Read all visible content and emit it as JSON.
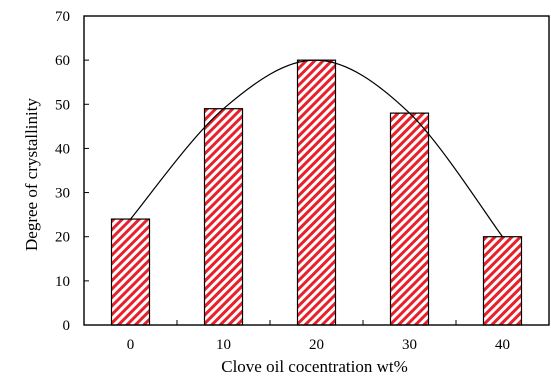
{
  "chart_data": {
    "type": "bar",
    "categories": [
      "0",
      "10",
      "20",
      "30",
      "40"
    ],
    "values": [
      24,
      49,
      60,
      48,
      20
    ],
    "xlabel": "Clove oil cocentration wt%",
    "ylabel": "Degree of crystallinity",
    "ylim": [
      0,
      70
    ],
    "yticks": [
      0,
      10,
      20,
      30,
      40,
      50,
      60,
      70
    ],
    "grid": false,
    "bar_pattern": "diagonal-hatch",
    "bar_color": "#e8202a",
    "trend_curve": true,
    "trend_color": "#000000"
  }
}
